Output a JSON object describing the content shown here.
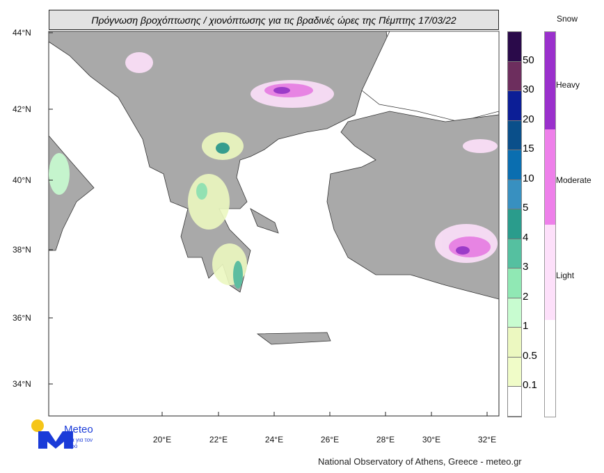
{
  "title": "Πρόγνωση βροχόπτωσης / χιονόπτωσης για τις βραδινές ώρες της Πέμπτης 17/03/22",
  "map": {
    "lat_labels": [
      "44°N",
      "42°N",
      "40°N",
      "38°N",
      "36°N",
      "34°N"
    ],
    "lon_labels": [
      "20°E",
      "22°E",
      "24°E",
      "26°E",
      "28°E",
      "30°E",
      "32°E"
    ],
    "land_color": "#a9a9a9",
    "sea_color": "#ffffff"
  },
  "rain_legend": {
    "colors": [
      "#2a0a4a",
      "#6d2e5e",
      "#0c1e96",
      "#0a4f8a",
      "#0a6eb0",
      "#3890c0",
      "#2a9c8c",
      "#55c0a0",
      "#90e8b4",
      "#c8fcd0",
      "#ecf8c0",
      "#f0fcc8",
      "#ffffff"
    ],
    "labels": [
      "50",
      "30",
      "20",
      "15",
      "10",
      "5",
      "4",
      "3",
      "2",
      "1",
      "0.5",
      "0.1"
    ]
  },
  "snow_legend": {
    "title": "Snow",
    "levels": [
      {
        "label": "Heavy",
        "color": "#9a30cc"
      },
      {
        "label": "Moderate",
        "color": "#ee80ea"
      },
      {
        "label": "Light",
        "color": "#fde0fa"
      }
    ]
  },
  "logo": {
    "name": "Meteo",
    "tagline": "Όλα για τον καιρό"
  },
  "footer": "National Observatory of Athens, Greece - meteo.gr"
}
